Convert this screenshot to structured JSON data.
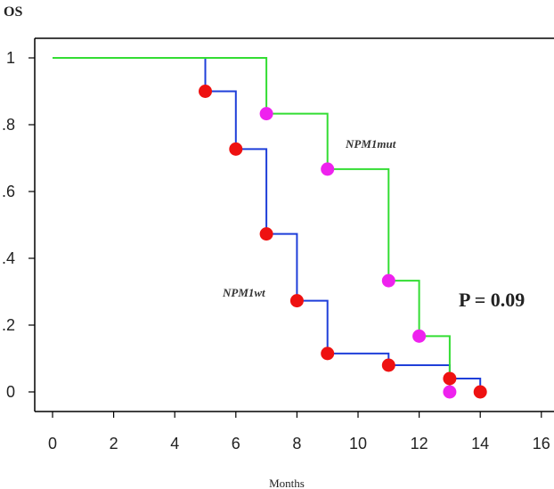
{
  "chart_data": {
    "type": "line",
    "subtype": "kaplan-meier-step",
    "title": "OS",
    "xlabel": "Months",
    "ylabel": "",
    "xlim": [
      0,
      16
    ],
    "ylim": [
      0,
      1
    ],
    "x_ticks": [
      "0",
      "2",
      "4",
      "6",
      "8",
      "10",
      "12",
      "14",
      "16"
    ],
    "x_tick_values": [
      0,
      2,
      4,
      6,
      8,
      10,
      12,
      14,
      16
    ],
    "y_ticks": [
      "0",
      ".2",
      ".4",
      ".6",
      ".8",
      "1"
    ],
    "y_tick_values": [
      0,
      0.2,
      0.4,
      0.6,
      0.8,
      1
    ],
    "grid": false,
    "series": [
      {
        "name": "NPM1wt",
        "color": "#1f3fd9",
        "marker_color": "#ee1111",
        "steps": [
          [
            0,
            1.0
          ],
          [
            5,
            0.9
          ],
          [
            6,
            0.727
          ],
          [
            7,
            0.473
          ],
          [
            8,
            0.273
          ],
          [
            9,
            0.115
          ],
          [
            11,
            0.08
          ],
          [
            13,
            0.04
          ],
          [
            14,
            0.0
          ]
        ],
        "events": [
          [
            5,
            0.9
          ],
          [
            6,
            0.727
          ],
          [
            7,
            0.473
          ],
          [
            8,
            0.273
          ],
          [
            9,
            0.115
          ],
          [
            11,
            0.08
          ],
          [
            13,
            0.04
          ],
          [
            14,
            0.0
          ]
        ]
      },
      {
        "name": "NPM1mut",
        "color": "#33dd33",
        "marker_color": "#ee22ee",
        "steps": [
          [
            0,
            1.0
          ],
          [
            7,
            0.833
          ],
          [
            9,
            0.667
          ],
          [
            11,
            0.333
          ],
          [
            12,
            0.167
          ],
          [
            13,
            0.0
          ]
        ],
        "events": [
          [
            7,
            0.833
          ],
          [
            9,
            0.667
          ],
          [
            11,
            0.333
          ],
          [
            12,
            0.167
          ],
          [
            13,
            0.0
          ]
        ]
      }
    ],
    "annotations": {
      "p_value": "P = 0.09",
      "label_wt": "NPM1wt",
      "label_mut": "NPM1mut"
    }
  }
}
